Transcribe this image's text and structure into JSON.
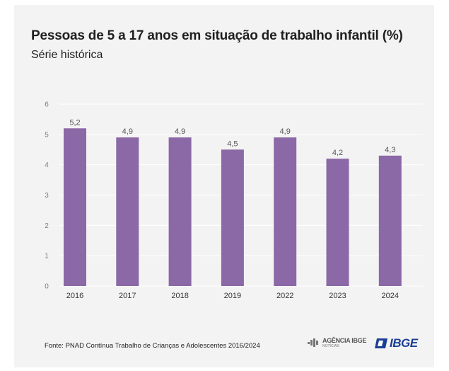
{
  "header": {
    "title": "Pessoas de 5 a 17 anos em situação de trabalho infantil (%)",
    "subtitle": "Série histórica"
  },
  "footer": {
    "source": "Fonte: PNAD Contínua Trabalho de Crianças e Adolescentes 2016/2024",
    "logo_agencia_main": "AGÊNCIA IBGE",
    "logo_agencia_sub": "NOTÍCIAS",
    "logo_ibge": "IBGE"
  },
  "colors": {
    "bar": "#8b68a6",
    "grid": "#ffffff",
    "background": "#f4f3f3",
    "ibge_blue": "#1a3f93"
  },
  "chart_data": {
    "type": "bar",
    "title": "Pessoas de 5 a 17 anos em situação de trabalho infantil (%)",
    "subtitle": "Série histórica",
    "categories": [
      "2016",
      "2017",
      "2018",
      "2019",
      "2022",
      "2023",
      "2024"
    ],
    "values": [
      5.2,
      4.9,
      4.9,
      4.5,
      4.9,
      4.2,
      4.3
    ],
    "value_labels": [
      "5,2",
      "4,9",
      "4,9",
      "4,5",
      "4,9",
      "4,2",
      "4,3"
    ],
    "yticks": [
      "0",
      "1",
      "2",
      "3",
      "4",
      "5",
      "6"
    ],
    "ylim": [
      0,
      6
    ],
    "xlabel": "",
    "ylabel": "",
    "grid": true,
    "legend": "none"
  }
}
